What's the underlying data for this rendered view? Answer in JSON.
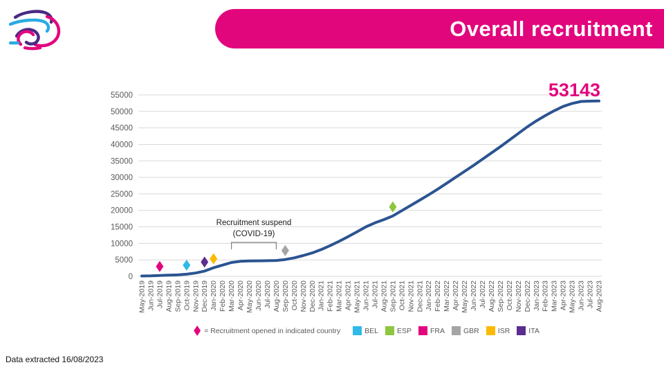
{
  "header": {
    "title": "Overall recruitment",
    "banner_color": "#E2067D"
  },
  "logo": {
    "colors": {
      "pink": "#E2067D",
      "purple": "#4A2A85",
      "cyan": "#2AABE2"
    }
  },
  "footer": {
    "text": "Data extracted 16/08/2023"
  },
  "chart_data": {
    "type": "line",
    "title": "",
    "xlabel": "",
    "ylabel": "",
    "ylim": [
      0,
      55000
    ],
    "ytick_step": 5000,
    "grid": true,
    "gridline_color": "#D9D9D9",
    "axis_text_color": "#595959",
    "categories": [
      "May-2019",
      "Jun-2019",
      "Jul-2019",
      "Aug-2019",
      "Sep-2019",
      "Oct-2019",
      "Nov-2019",
      "Dec-2019",
      "Jan-2020",
      "Feb-2020",
      "Mar-2020",
      "Apr-2020",
      "May-2020",
      "Jun-2020",
      "Jul-2020",
      "Aug-2020",
      "Sep-2020",
      "Oct-2020",
      "Nov-2020",
      "Dec-2020",
      "Jan-2021",
      "Feb-2021",
      "Mar-2021",
      "Apr-2021",
      "May-2021",
      "Jun-2021",
      "Jul-2021",
      "Aug-2021",
      "Sep-2021",
      "Oct-2021",
      "Nov-2021",
      "Dec-2021",
      "Jan-2022",
      "Feb-2022",
      "Mar-2022",
      "Apr-2022",
      "May-2022",
      "Jun-2022",
      "Jul-2022",
      "Aug-2022",
      "Sep-2022",
      "Oct-2022",
      "Nov-2022",
      "Dec-2022",
      "Jan-2023",
      "Feb-2023",
      "Mar-2023",
      "Apr-2023",
      "May-2023",
      "Jun-2023",
      "Jul-2023",
      "Aug-2023"
    ],
    "series": [
      {
        "name": "Cumulative recruitment",
        "color": "#2B5491",
        "values": [
          100,
          150,
          250,
          350,
          450,
          650,
          1000,
          1600,
          2600,
          3400,
          4200,
          4550,
          4650,
          4700,
          4750,
          4800,
          5100,
          5600,
          6300,
          7100,
          8100,
          9300,
          10600,
          12000,
          13500,
          15000,
          16200,
          17200,
          18300,
          19900,
          21500,
          23100,
          24700,
          26400,
          28200,
          30000,
          31800,
          33600,
          35500,
          37400,
          39300,
          41300,
          43300,
          45300,
          47100,
          48700,
          50200,
          51500,
          52400,
          53000,
          53120,
          53143
        ]
      }
    ],
    "end_label": "53143",
    "end_label_color": "#E2067D",
    "annotation": {
      "text_line1": "Recruitment suspend",
      "text_line2": "(COVID-19)",
      "from": "Mar-2020",
      "to": "Aug-2020"
    },
    "markers": [
      {
        "country": "FRA",
        "month": "Jul-2019",
        "color": "#E2067D"
      },
      {
        "country": "BEL",
        "month": "Oct-2019",
        "color": "#30B9E9"
      },
      {
        "country": "ITA",
        "month": "Dec-2019",
        "color": "#5B2D90"
      },
      {
        "country": "ISR",
        "month": "Jan-2020",
        "color": "#FBBA00"
      },
      {
        "country": "GBR",
        "month": "Sep-2020",
        "color": "#A5A5A5"
      },
      {
        "country": "ESP",
        "month": "Sep-2021",
        "color": "#8DC63F"
      }
    ],
    "legend": {
      "marker_label": "= Recruitment opened in indicated country",
      "entries": [
        {
          "label": "BEL",
          "color": "#30B9E9"
        },
        {
          "label": "ESP",
          "color": "#8DC63F"
        },
        {
          "label": "FRA",
          "color": "#E2067D"
        },
        {
          "label": "GBR",
          "color": "#A5A5A5"
        },
        {
          "label": "ISR",
          "color": "#FBBA00"
        },
        {
          "label": "ITA",
          "color": "#5B2D90"
        }
      ]
    }
  }
}
